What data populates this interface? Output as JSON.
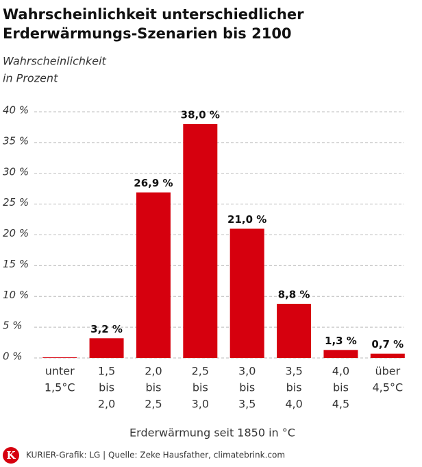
{
  "chart_data": {
    "type": "bar",
    "title": [
      "Wahrscheinlichkeit unterschiedlicher",
      "Erderwärmungs-Szenarien bis 2100"
    ],
    "subtitle": [
      "Wahrscheinlichkeit",
      "in Prozent"
    ],
    "x_label": "Erderwärmung seit 1850 in °C",
    "source": "KURIER-Grafik: LG | Quelle: Zeke Hausfather, climatebrink.com",
    "logo": "K",
    "categories": [
      [
        "unter",
        "1,5°C"
      ],
      [
        "1,5",
        "bis",
        "2,0"
      ],
      [
        "2,0",
        "bis",
        "2,5"
      ],
      [
        "2,5",
        "bis",
        "3,0"
      ],
      [
        "3,0",
        "bis",
        "3,5"
      ],
      [
        "3,5",
        "bis",
        "4,0"
      ],
      [
        "4,0",
        "bis",
        "4,5"
      ],
      [
        "über",
        "4,5°C"
      ]
    ],
    "values": [
      0.1,
      3.2,
      26.9,
      38.0,
      21.0,
      8.8,
      1.3,
      0.7
    ],
    "value_labels": [
      null,
      "3,2 %",
      "26,9 %",
      "38,0 %",
      "21,0 %",
      "8,8 %",
      "1,3 %",
      "0,7 %"
    ],
    "color": "#d6000e",
    "ylim": [
      0,
      40
    ],
    "yticks": [
      {
        "value": 0,
        "label": "0 %"
      },
      {
        "value": 5,
        "label": "5 %"
      },
      {
        "value": 10,
        "label": "10 %"
      },
      {
        "value": 15,
        "label": "15 %"
      },
      {
        "value": 20,
        "label": "20 %"
      },
      {
        "value": 25,
        "label": "25 %"
      },
      {
        "value": 30,
        "label": "30 %"
      },
      {
        "value": 35,
        "label": "35 %"
      },
      {
        "value": 40,
        "label": "40 %"
      }
    ],
    "grid": true
  }
}
